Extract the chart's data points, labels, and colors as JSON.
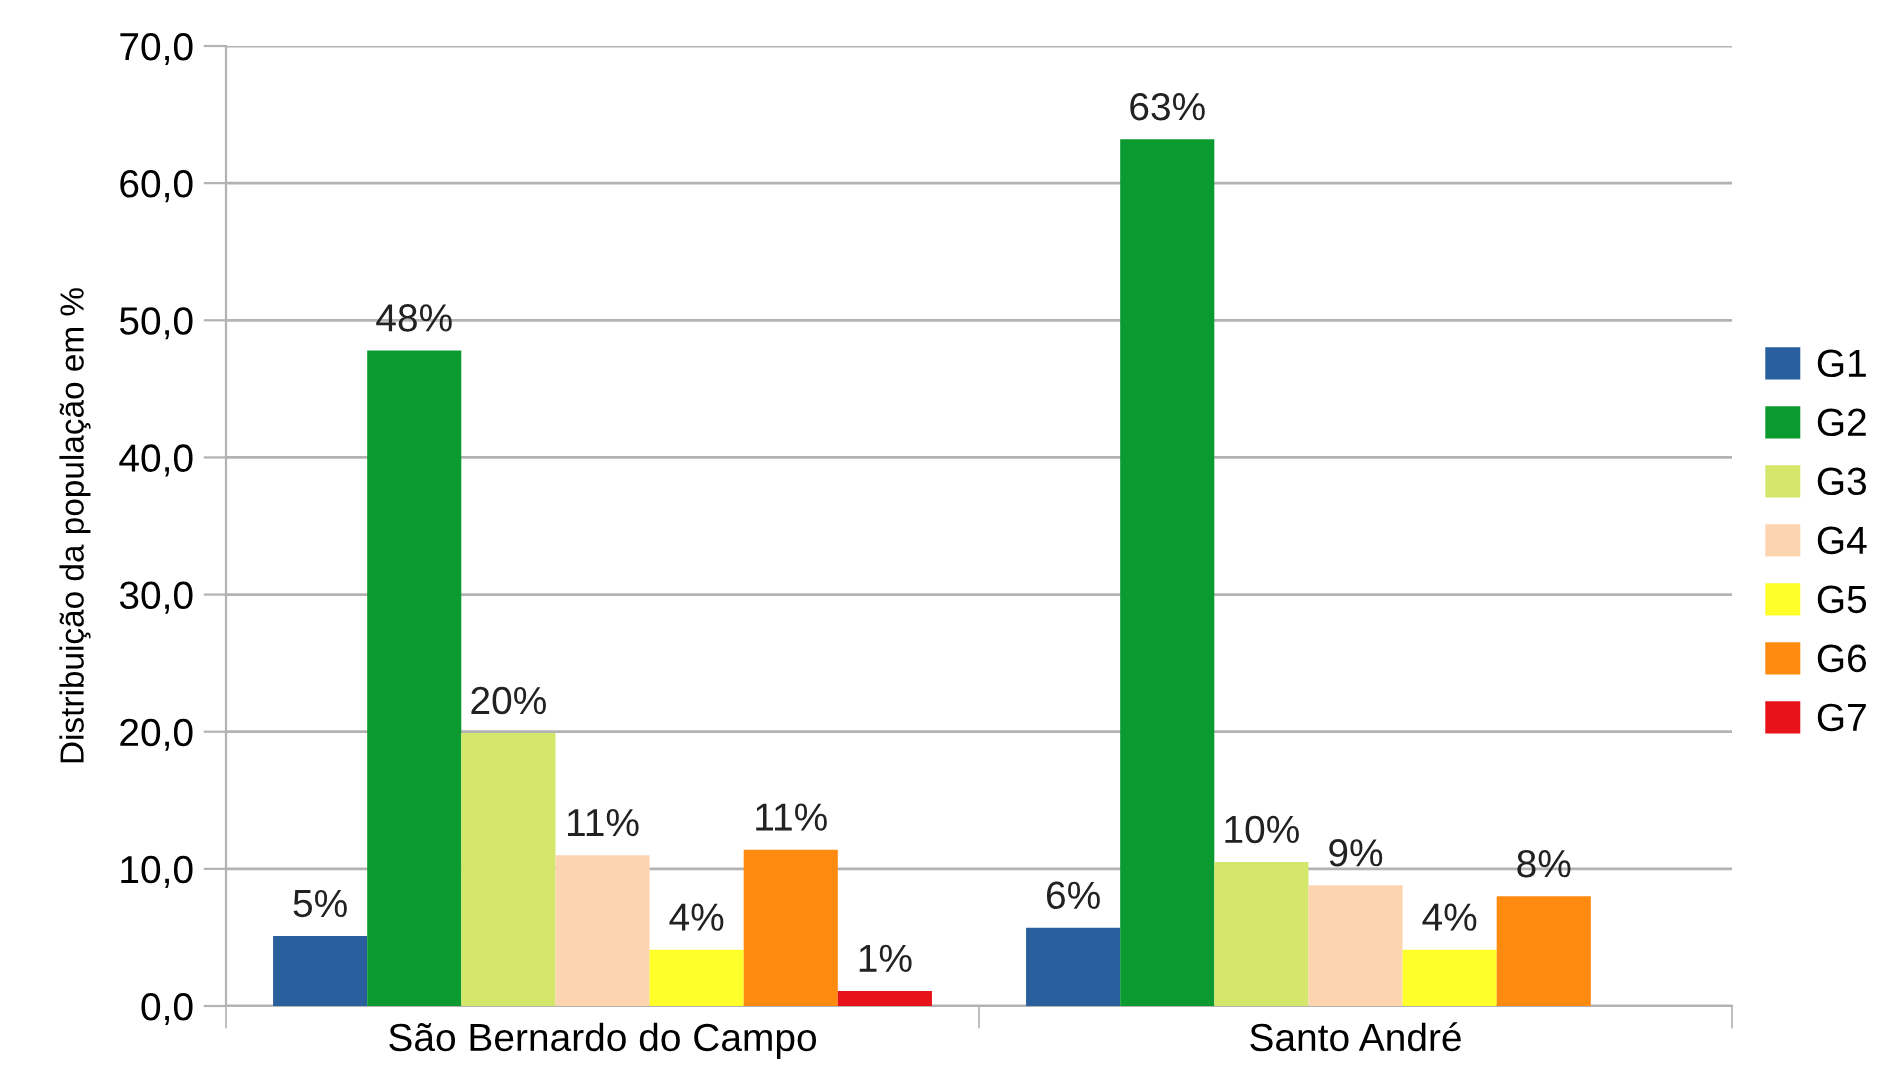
{
  "chart_data": {
    "type": "bar",
    "ylabel": "Distribuição da população em %",
    "categories": [
      "São Bernardo do Campo",
      "Santo André"
    ],
    "series": [
      {
        "name": "G1",
        "color": "#2a5f9e",
        "values": [
          5.1,
          5.7
        ],
        "value_labels": [
          "5%",
          "6%"
        ]
      },
      {
        "name": "G2",
        "color": "#0a9a2f",
        "values": [
          47.8,
          63.2
        ],
        "value_labels": [
          "48%",
          "63%"
        ]
      },
      {
        "name": "G3",
        "color": "#d4e76a",
        "values": [
          19.9,
          10.5
        ],
        "value_labels": [
          "20%",
          "10%"
        ]
      },
      {
        "name": "G4",
        "color": "#fcd5b0",
        "values": [
          11.0,
          8.8
        ],
        "value_labels": [
          "11%",
          "9%"
        ]
      },
      {
        "name": "G5",
        "color": "#ffff2a",
        "values": [
          4.1,
          4.1
        ],
        "value_labels": [
          "4%",
          "4%"
        ]
      },
      {
        "name": "G6",
        "color": "#ff8a10",
        "values": [
          11.4,
          8.0
        ],
        "value_labels": [
          "11%",
          "8%"
        ]
      },
      {
        "name": "G7",
        "color": "#e8121a",
        "values": [
          1.1,
          null
        ],
        "value_labels": [
          "1%",
          null
        ]
      }
    ],
    "ylim": [
      0,
      70
    ],
    "yticks": [
      {
        "value": 0,
        "label": "0,0"
      },
      {
        "value": 10,
        "label": "10,0"
      },
      {
        "value": 20,
        "label": "20,0"
      },
      {
        "value": 30,
        "label": "30,0"
      },
      {
        "value": 40,
        "label": "40,0"
      },
      {
        "value": 50,
        "label": "50,0"
      },
      {
        "value": 60,
        "label": "60,0"
      },
      {
        "value": 70,
        "label": "70,0"
      }
    ],
    "grid": "y",
    "legend": "right"
  }
}
